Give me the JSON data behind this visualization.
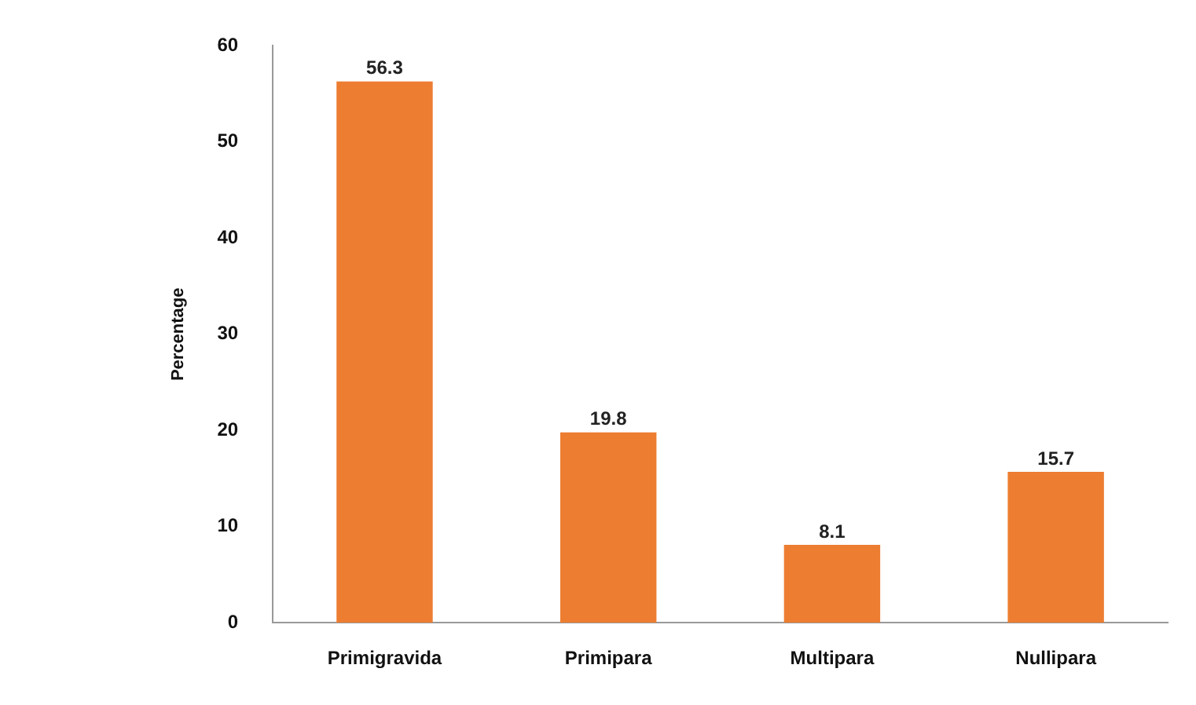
{
  "chart_data": {
    "type": "bar",
    "ylabel": "Percentage",
    "categories": [
      "Primigravida",
      "Primipara",
      "Multipara",
      "Nullipara"
    ],
    "values": [
      56.3,
      19.8,
      8.1,
      15.7
    ],
    "color": "#ed7d31",
    "value_labels": [
      "56.3",
      "19.8",
      "8.1",
      "15.7"
    ],
    "ylim": [
      0,
      60
    ],
    "yticks": [
      0,
      10,
      20,
      30,
      40,
      50,
      60
    ],
    "grid": false,
    "legend": false
  }
}
